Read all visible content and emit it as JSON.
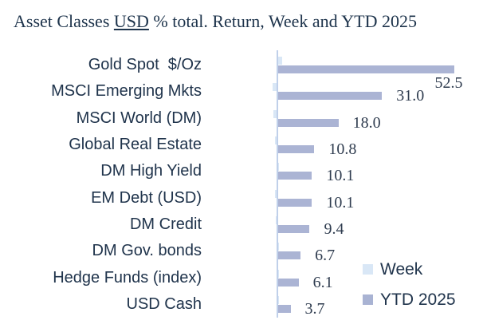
{
  "title": {
    "pre": "Asset Classes ",
    "underlined": "USD",
    "post": " % total. Return, Week and YTD 2025"
  },
  "legend": {
    "week": {
      "label": "Week",
      "color": "#d9e7f6"
    },
    "ytd": {
      "label": "YTD 2025",
      "color": "#a9b3d3"
    }
  },
  "chart_data": {
    "type": "bar",
    "orientation": "horizontal",
    "title": "Asset Classes USD % total. Return, Week and YTD 2025",
    "categories": [
      "Gold Spot  $/Oz",
      "MSCI Emerging Mkts",
      "MSCI World (DM)",
      "Global Real Estate",
      "DM High Yield",
      "EM Debt (USD)",
      "DM Credit",
      "DM Gov. bonds",
      "Hedge Funds (index)",
      "USD Cash"
    ],
    "series": [
      {
        "name": "Week",
        "color": "#d9e7f6",
        "values": [
          1.3,
          -1.2,
          -1.0,
          -0.4,
          0.2,
          -0.4,
          -0.2,
          0.3,
          0.1,
          0.1
        ],
        "data_labels": false
      },
      {
        "name": "YTD 2025",
        "color": "#abb4d4",
        "values": [
          52.5,
          31.0,
          18.0,
          10.8,
          10.1,
          10.1,
          9.4,
          6.7,
          6.1,
          3.7
        ],
        "data_labels": true
      }
    ],
    "value_labels": [
      "52.5",
      "31.0",
      "18.0",
      "10.8",
      "10.1",
      "10.1",
      "9.4",
      "6.7",
      "6.1",
      "3.7"
    ],
    "xlim": [
      -25,
      60
    ],
    "grid": false,
    "zero_line_color": "#c0d0ea",
    "legend_position": "inside-bottom-right"
  }
}
